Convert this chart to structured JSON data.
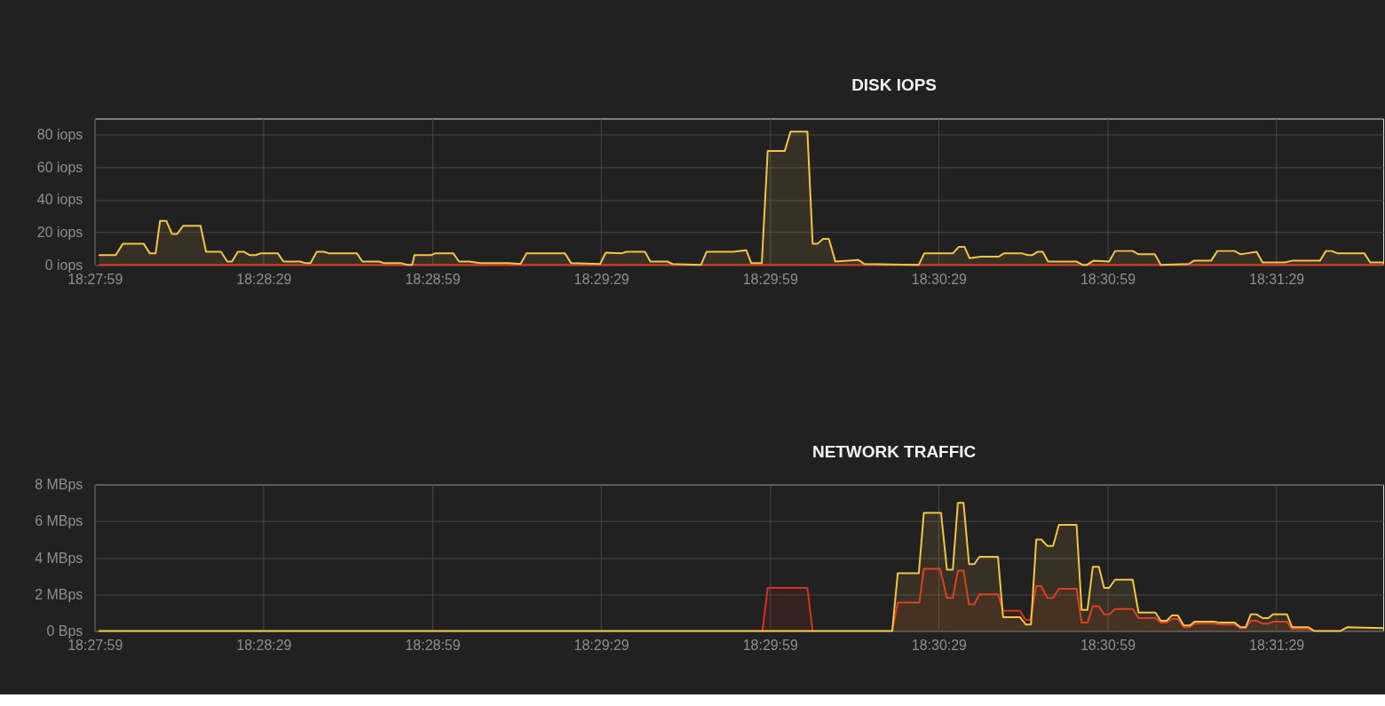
{
  "chart_data": [
    {
      "type": "area",
      "title": "DISK IOPS",
      "xlim": [
        18.466389,
        18.53
      ],
      "xticks": [
        {
          "value": 18.466389,
          "label": "18:27:59"
        },
        {
          "value": 18.474722,
          "label": "18:28:29"
        },
        {
          "value": 18.483056,
          "label": "18:28:59"
        },
        {
          "value": 18.491389,
          "label": "18:29:29"
        },
        {
          "value": 18.499722,
          "label": "18:29:59"
        },
        {
          "value": 18.508056,
          "label": "18:30:29"
        },
        {
          "value": 18.516389,
          "label": "18:30:59"
        },
        {
          "value": 18.524722,
          "label": "18:31:29"
        }
      ],
      "ylim": [
        0,
        90
      ],
      "yticks": [
        {
          "value": 0,
          "label": "0 iops"
        },
        {
          "value": 20,
          "label": "20 iops"
        },
        {
          "value": 40,
          "label": "40 iops"
        },
        {
          "value": 60,
          "label": "60 iops"
        },
        {
          "value": 80,
          "label": "80 iops"
        }
      ],
      "grid": true,
      "series": [
        {
          "type": "line",
          "color": "#d7321e",
          "x": [
            18.46661,
            18.53
          ],
          "values": [
            0,
            0
          ]
        },
        {
          "color": "#f4c445",
          "x": [
            18.46661,
            18.46742,
            18.46778,
            18.4688,
            18.46911,
            18.46939,
            18.46961,
            18.46992,
            18.4702,
            18.47046,
            18.47075,
            18.47161,
            18.47188,
            18.47262,
            18.47293,
            18.47316,
            18.47345,
            18.47376,
            18.47403,
            18.47434,
            18.47457,
            18.47543,
            18.4757,
            18.47652,
            18.47679,
            18.47704,
            18.47735,
            18.47769,
            18.47797,
            18.47933,
            18.4796,
            18.48042,
            18.48069,
            18.48151,
            18.48183,
            18.48206,
            18.48217,
            18.483,
            18.48318,
            18.48409,
            18.48437,
            18.48487,
            18.48541,
            18.48683,
            18.48741,
            18.4877,
            18.4896,
            18.48991,
            18.49134,
            18.49161,
            18.49236,
            18.49265,
            18.49355,
            18.49382,
            18.49466,
            18.49491,
            18.49632,
            18.49659,
            18.4979,
            18.49855,
            18.4988,
            18.49932,
            18.49961,
            18.50045,
            18.50074,
            18.50157,
            18.50183,
            18.50208,
            18.50234,
            18.50263,
            18.50295,
            18.50408,
            18.50438,
            18.50707,
            18.50734,
            18.50875,
            18.50904,
            18.50933,
            18.50958,
            18.51013,
            18.51101,
            18.51127,
            18.51217,
            18.51246,
            18.51268,
            18.51293,
            18.51319,
            18.51345,
            18.51486,
            18.51516,
            18.51538,
            18.51569,
            18.51647,
            18.51676,
            18.51763,
            18.51792,
            18.51872,
            18.51902,
            18.5204,
            18.52065,
            18.5215,
            18.52181,
            18.52266,
            18.52295,
            18.52324,
            18.52375,
            18.52404,
            18.52513,
            18.5255,
            18.52688,
            18.52717,
            18.52746,
            18.52776,
            18.52907,
            18.52936,
            18.53
          ],
          "values": [
            6,
            6,
            13,
            13,
            7,
            7,
            27,
            27,
            19,
            19,
            24,
            24,
            8,
            8,
            2,
            2,
            8,
            8,
            6,
            6,
            7,
            7,
            2,
            2,
            1,
            1,
            8,
            8,
            7,
            7,
            2,
            2,
            1,
            1,
            0,
            0,
            6,
            6,
            7,
            7,
            2,
            2,
            1,
            1,
            0.5,
            7,
            7,
            1,
            0.5,
            7.5,
            7,
            8,
            8,
            2,
            2,
            0.5,
            0,
            8,
            8,
            9,
            1,
            1,
            70,
            70,
            82,
            82,
            13,
            13,
            16,
            16,
            2,
            3,
            0.5,
            0,
            7,
            7,
            11,
            11,
            4,
            5,
            5,
            7,
            7,
            6,
            6,
            8,
            8,
            2,
            2,
            0,
            0,
            2.5,
            2,
            8.5,
            8.5,
            6.5,
            6.5,
            0,
            0.5,
            2.5,
            2.5,
            8.5,
            8.5,
            6.5,
            7,
            8,
            1.5,
            1.5,
            2.5,
            2.5,
            8.5,
            8.5,
            7,
            7,
            1.5,
            1.5
          ]
        }
      ]
    },
    {
      "type": "area",
      "title": "NETWORK TRAFFIC",
      "xlim": [
        18.466389,
        18.53
      ],
      "xticks": [
        {
          "value": 18.466389,
          "label": "18:27:59"
        },
        {
          "value": 18.474722,
          "label": "18:28:29"
        },
        {
          "value": 18.483056,
          "label": "18:28:59"
        },
        {
          "value": 18.491389,
          "label": "18:29:29"
        },
        {
          "value": 18.499722,
          "label": "18:29:59"
        },
        {
          "value": 18.508056,
          "label": "18:30:29"
        },
        {
          "value": 18.516389,
          "label": "18:30:59"
        },
        {
          "value": 18.524722,
          "label": "18:31:29"
        }
      ],
      "ylim": [
        0,
        8
      ],
      "yticks": [
        {
          "value": 0,
          "label": "0 Bps"
        },
        {
          "value": 2,
          "label": "2 MBps"
        },
        {
          "value": 4,
          "label": "4 MBps"
        },
        {
          "value": 6,
          "label": "6 MBps"
        },
        {
          "value": 8,
          "label": "8 MBps"
        }
      ],
      "grid": true,
      "series": [
        {
          "color": "#d7321e",
          "x": [
            18.49935,
            18.49961,
            18.50157,
            18.50183,
            18.504,
            18.50576,
            18.50603,
            18.5071,
            18.50732,
            18.50812,
            18.50846,
            18.50875,
            18.509,
            18.50928,
            18.50955,
            18.50981,
            18.51006,
            18.51098,
            18.51123,
            18.51206,
            18.51235,
            18.51258,
            18.51287,
            18.51312,
            18.51341,
            18.5137,
            18.51399,
            18.51486,
            18.51511,
            18.5154,
            18.51566,
            18.51596,
            18.51622,
            18.51647,
            18.51676,
            18.51763,
            18.51792,
            18.51875,
            18.51902,
            18.51931,
            18.51957,
            18.51986,
            18.52015,
            18.52045,
            18.52069,
            18.52164,
            18.52193,
            18.52266,
            18.52295,
            18.52321,
            18.52346,
            18.52375,
            18.52404,
            18.52433,
            18.52455,
            18.52525,
            18.5255,
            18.5263,
            18.52659
          ],
          "values": [
            0,
            2.35,
            2.35,
            0,
            null,
            0,
            1.55,
            1.55,
            3.4,
            3.4,
            1.8,
            1.8,
            3.3,
            3.3,
            1.45,
            1.45,
            2.0,
            2.0,
            1.1,
            1.1,
            0.6,
            0.6,
            2.45,
            2.45,
            1.8,
            1.8,
            2.3,
            2.3,
            0.45,
            0.45,
            1.35,
            1.35,
            0.9,
            0.9,
            1.2,
            1.2,
            0.7,
            0.7,
            0.45,
            0.45,
            0.65,
            0.65,
            0.2,
            0.2,
            0.4,
            0.4,
            0.35,
            0.35,
            0.15,
            0.15,
            0.55,
            0.55,
            0.4,
            0.4,
            0.5,
            0.5,
            0.1,
            0.1,
            0
          ]
        },
        {
          "color": "#f4c445",
          "x": [
            18.46661,
            18.50576,
            18.50603,
            18.50707,
            18.50732,
            18.50817,
            18.50846,
            18.50875,
            18.509,
            18.50928,
            18.50955,
            18.50981,
            18.51006,
            18.51098,
            18.51123,
            18.51206,
            18.51235,
            18.51261,
            18.51287,
            18.51312,
            18.51341,
            18.5137,
            18.51399,
            18.51486,
            18.51511,
            18.5154,
            18.51566,
            18.51596,
            18.51622,
            18.51647,
            18.51676,
            18.51763,
            18.51792,
            18.51875,
            18.51902,
            18.51931,
            18.51957,
            18.51986,
            18.52015,
            18.52045,
            18.52069,
            18.52164,
            18.52193,
            18.52266,
            18.52295,
            18.52321,
            18.52346,
            18.52375,
            18.52404,
            18.52433,
            18.52455,
            18.52525,
            18.5255,
            18.5263,
            18.52659,
            18.5279,
            18.52822,
            18.53
          ],
          "values": [
            0,
            0,
            3.15,
            3.15,
            6.45,
            6.45,
            3.35,
            3.35,
            7.0,
            7.0,
            3.65,
            3.65,
            4.05,
            4.05,
            0.75,
            0.75,
            0.35,
            0.35,
            5.0,
            5.0,
            4.65,
            4.65,
            5.8,
            5.8,
            1.15,
            1.15,
            3.5,
            3.5,
            2.35,
            2.35,
            2.8,
            2.8,
            1.0,
            1.0,
            0.55,
            0.55,
            0.85,
            0.85,
            0.3,
            0.3,
            0.5,
            0.5,
            0.45,
            0.45,
            0.2,
            0.2,
            0.9,
            0.9,
            0.7,
            0.7,
            0.9,
            0.9,
            0.2,
            0.2,
            0,
            0,
            0.2,
            0.15
          ]
        }
      ]
    }
  ]
}
